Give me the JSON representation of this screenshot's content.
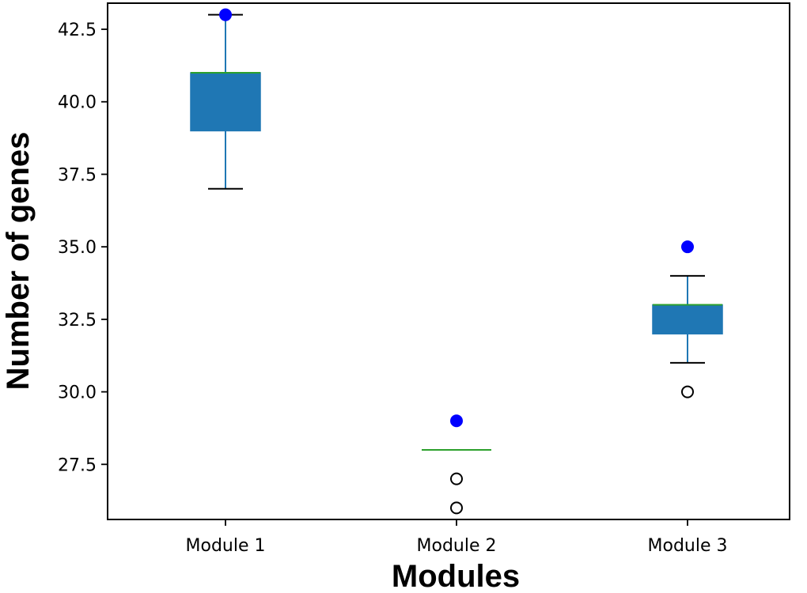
{
  "chart_data": {
    "type": "box",
    "title": "",
    "xlabel": "Modules",
    "ylabel": "Number of genes",
    "categories": [
      "Module 1",
      "Module 2",
      "Module 3"
    ],
    "ylim": [
      25.6,
      43.4
    ],
    "yticks": [
      27.5,
      30.0,
      32.5,
      35.0,
      37.5,
      40.0,
      42.5
    ],
    "ytick_labels": [
      "27.5",
      "30.0",
      "32.5",
      "35.0",
      "37.5",
      "40.0",
      "42.5"
    ],
    "grid": false,
    "boxes": [
      {
        "category": "Module 1",
        "q1": 39,
        "median": 41,
        "q3": 41,
        "whisker_low": 37,
        "whisker_high": 43,
        "outliers": [],
        "highlight": 43
      },
      {
        "category": "Module 2",
        "q1": 28,
        "median": 28,
        "q3": 28,
        "whisker_low": 28,
        "whisker_high": 28,
        "outliers": [
          26,
          27
        ],
        "highlight": 29
      },
      {
        "category": "Module 3",
        "q1": 32,
        "median": 33,
        "q3": 33,
        "whisker_low": 31,
        "whisker_high": 34,
        "outliers": [
          30
        ],
        "highlight": 35
      }
    ],
    "colors": {
      "box_fill": "#1f77b4",
      "box_edge": "#1f77b4",
      "median": "#2ca02c",
      "whisker": "#1f77b4",
      "cap": "#000000",
      "highlight_point": "#0000ff",
      "outlier_edge": "#000000"
    }
  }
}
